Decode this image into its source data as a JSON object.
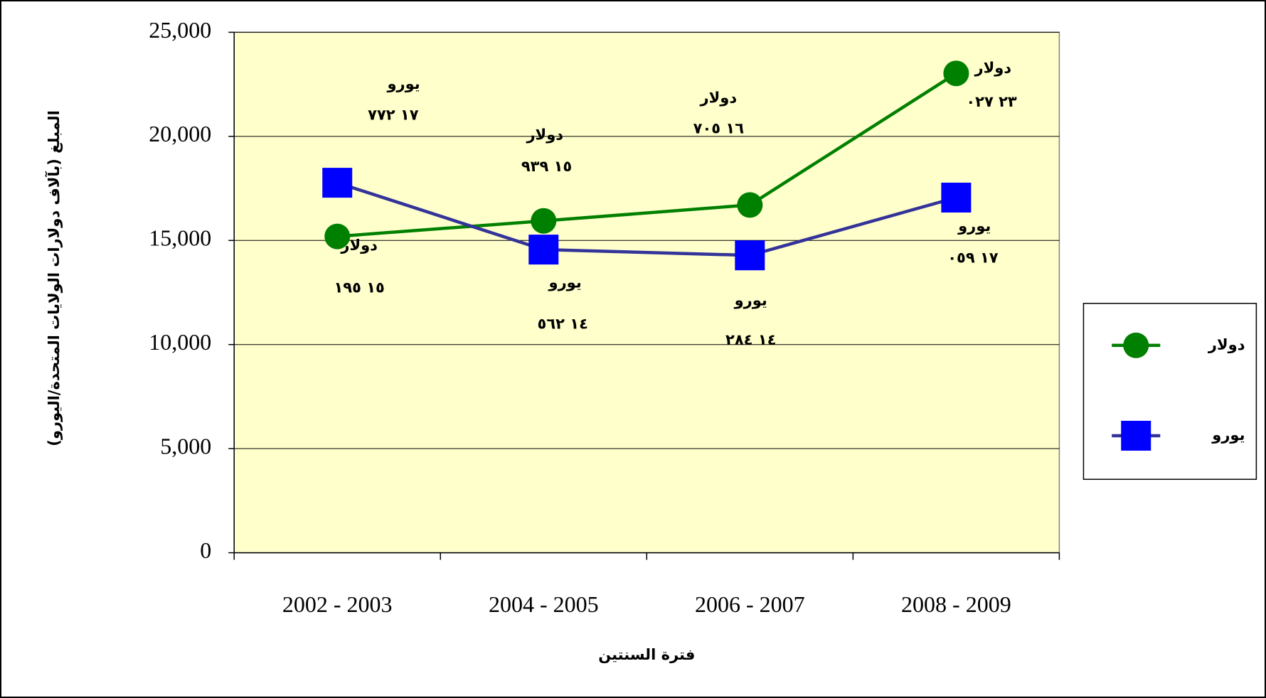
{
  "chart_data": {
    "type": "line",
    "y_label": "المبلغ (بآلاف دولارات الولايات المتحدة/اليورو)",
    "x_label": "فترة السنتين",
    "categories": [
      "2002 - 2003",
      "2004 - 2005",
      "2006 - 2007",
      "2008 - 2009"
    ],
    "series": [
      {
        "name": "دولار",
        "color": "#008000",
        "marker": "circle",
        "values": [
          15195,
          15939,
          16705,
          23027
        ],
        "value_labels": [
          "١٥ ١٩٥",
          "١٥ ٩٣٩",
          "١٦ ٧٠٥",
          "٢٣ ٠٢٧"
        ]
      },
      {
        "name": "يورو",
        "color": "#333399",
        "marker_color": "#0000ff",
        "marker": "square",
        "values": [
          17772,
          14562,
          14284,
          17059
        ],
        "value_labels": [
          "١٧ ٧٧٢",
          "١٤ ٥٦٢",
          "١٤ ٢٨٤",
          "١٧ ٠٥٩"
        ]
      }
    ],
    "ylim": [
      0,
      25000
    ],
    "yticks": [
      0,
      {
        "value": 5000,
        "label": "5,000"
      },
      {
        "value": 10000,
        "label": "10,000"
      },
      {
        "value": 15000,
        "label": "15,000"
      },
      {
        "value": 20000,
        "label": "20,000"
      },
      {
        "value": 25000,
        "label": "25,000"
      }
    ],
    "grid": true,
    "legend": "right",
    "plot_background": "#ffffcc"
  }
}
